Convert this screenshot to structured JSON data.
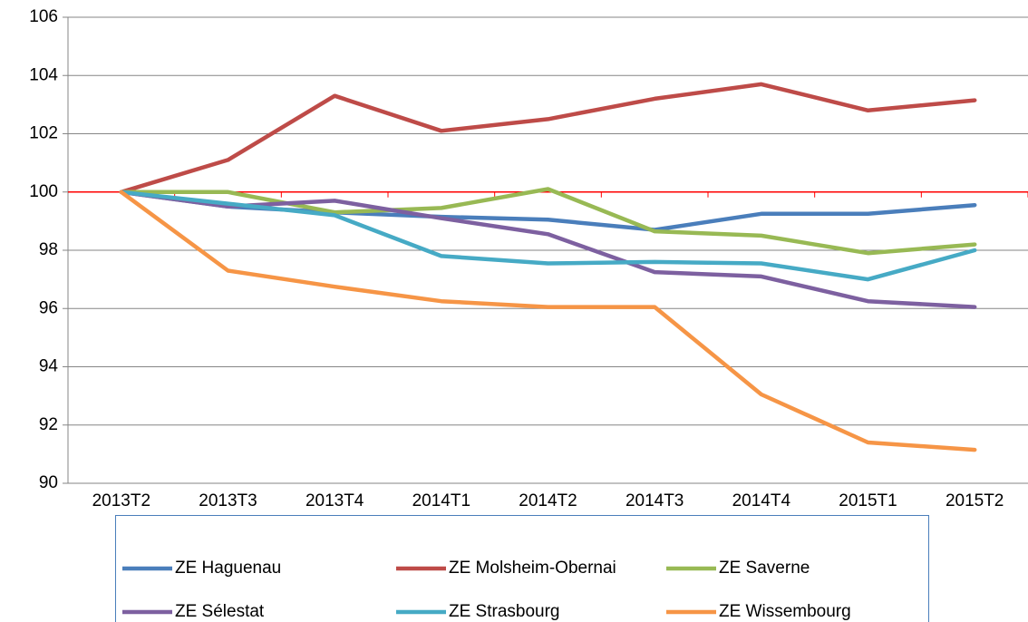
{
  "chart_data": {
    "type": "line",
    "categories": [
      "2013T2",
      "2013T3",
      "2013T4",
      "2014T1",
      "2014T2",
      "2014T3",
      "2014T4",
      "2015T1",
      "2015T2"
    ],
    "series": [
      {
        "name": "ZE Haguenau",
        "color": "#4a7ebb",
        "values": [
          100,
          99.5,
          99.3,
          99.15,
          99.05,
          98.7,
          99.25,
          99.25,
          99.55
        ]
      },
      {
        "name": "ZE Molsheim-Obernai",
        "color": "#be4b48",
        "values": [
          100,
          101.1,
          103.3,
          102.1,
          102.5,
          103.2,
          103.7,
          102.8,
          103.15
        ]
      },
      {
        "name": "ZE Saverne",
        "color": "#98b954",
        "values": [
          100,
          100,
          99.3,
          99.45,
          100.1,
          98.65,
          98.5,
          97.9,
          98.2
        ]
      },
      {
        "name": "ZE Sélestat",
        "color": "#7d60a0",
        "values": [
          100,
          99.5,
          99.7,
          99.1,
          98.55,
          97.25,
          97.1,
          96.25,
          96.05
        ]
      },
      {
        "name": "ZE Strasbourg",
        "color": "#46aac5",
        "values": [
          100,
          99.6,
          99.2,
          97.8,
          97.55,
          97.6,
          97.55,
          97.0,
          98.0
        ]
      },
      {
        "name": "ZE Wissembourg",
        "color": "#f69546",
        "values": [
          100,
          97.3,
          96.75,
          96.25,
          96.05,
          96.05,
          93.05,
          91.4,
          91.15
        ]
      }
    ],
    "ylim": [
      90,
      106
    ],
    "yticks": [
      90,
      92,
      94,
      96,
      98,
      100,
      102,
      104,
      106
    ],
    "x_axis_crosses": 100,
    "x_axis_color": "#ff0000",
    "grid": true
  }
}
